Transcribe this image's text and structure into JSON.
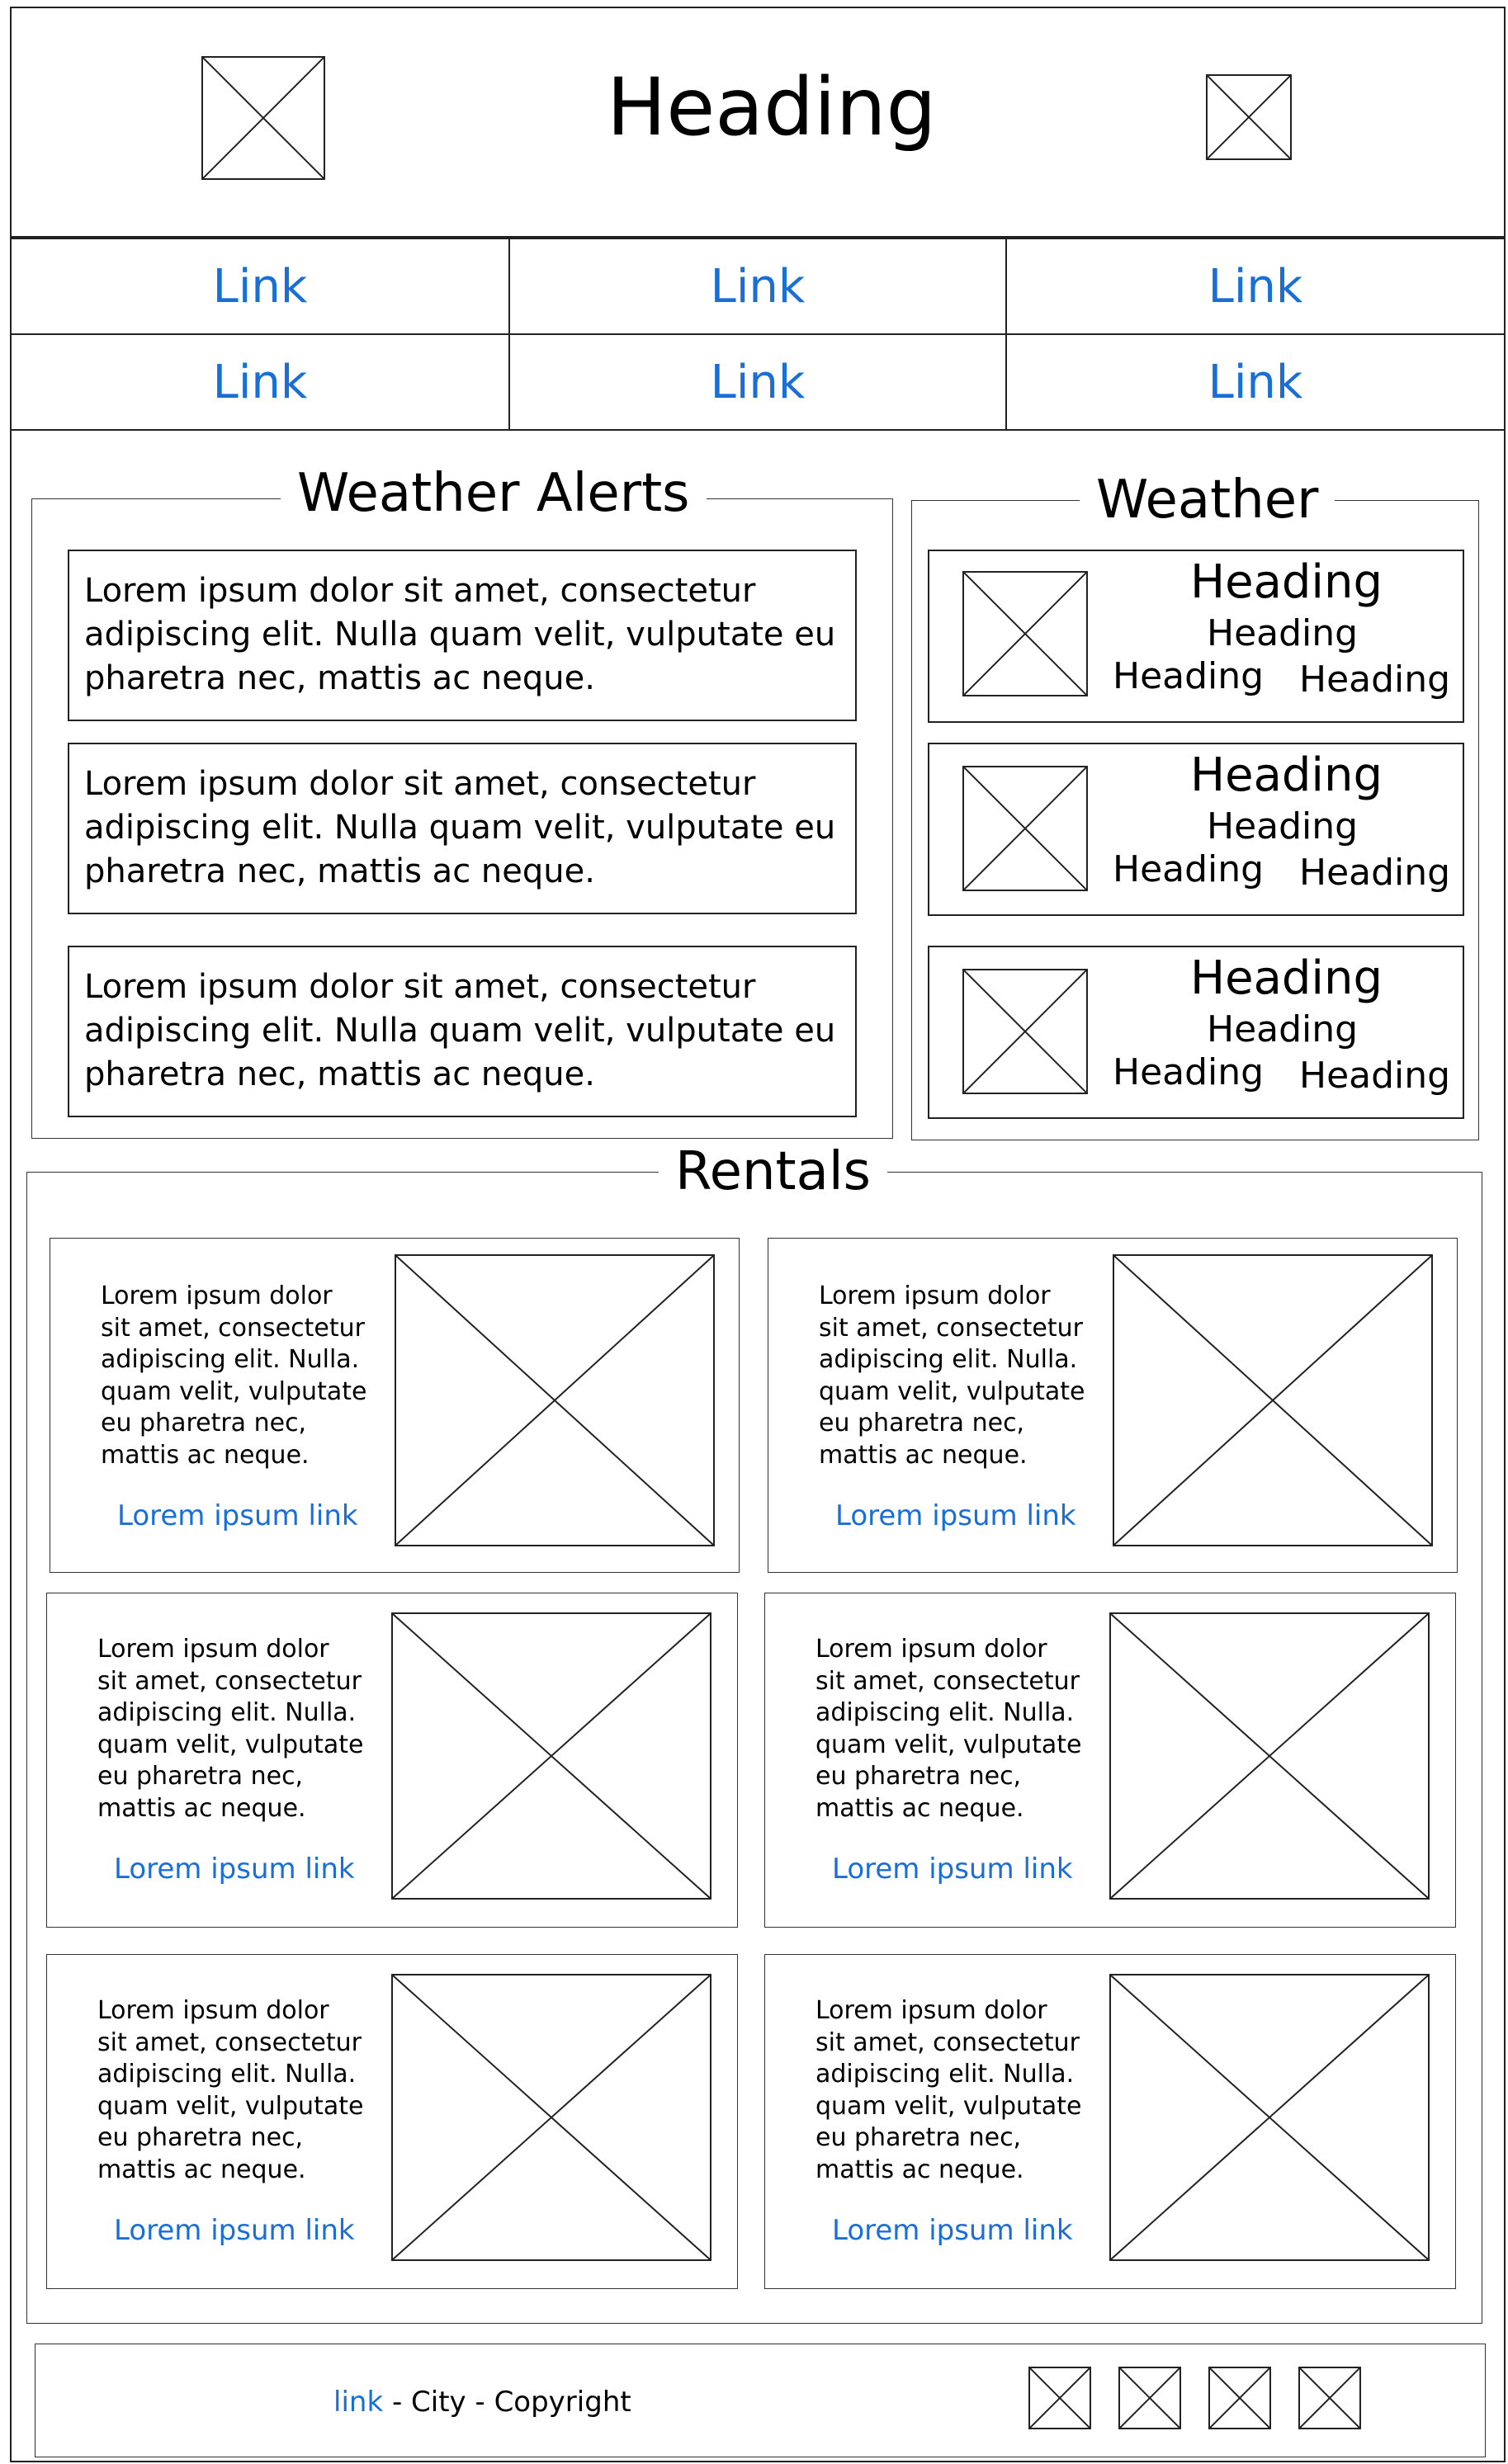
{
  "header": {
    "title": "Heading"
  },
  "nav": {
    "links": [
      "Link",
      "Link",
      "Link",
      "Link",
      "Link",
      "Link"
    ]
  },
  "weather_alerts": {
    "title": "Weather Alerts",
    "items": [
      "Lorem ipsum dolor sit amet, consectetur adipiscing elit. Nulla quam velit, vulputate eu pharetra nec, mattis ac neque.",
      "Lorem ipsum dolor sit amet, consectetur adipiscing elit. Nulla quam velit, vulputate eu pharetra nec, mattis ac neque.",
      "Lorem ipsum dolor sit amet, consectetur adipiscing elit. Nulla quam velit, vulputate eu pharetra nec, mattis ac neque."
    ]
  },
  "weather": {
    "title": "Weather",
    "cards": [
      {
        "h1": "Heading",
        "h2": "Heading",
        "h3": "Heading",
        "h4": "Heading"
      },
      {
        "h1": "Heading",
        "h2": "Heading",
        "h3": "Heading",
        "h4": "Heading"
      },
      {
        "h1": "Heading",
        "h2": "Heading",
        "h3": "Heading",
        "h4": "Heading"
      }
    ]
  },
  "rentals": {
    "title": "Rentals",
    "cards": [
      {
        "text": "Lorem ipsum dolor\nsit amet, consectetur\nadipiscing elit. Nulla.\nquam velit, vulputate\neu pharetra nec,\nmattis ac neque.",
        "link": "Lorem ipsum link"
      },
      {
        "text": "Lorem ipsum dolor\nsit amet, consectetur\nadipiscing elit. Nulla.\nquam velit, vulputate\neu pharetra nec,\nmattis ac neque.",
        "link": "Lorem ipsum link"
      },
      {
        "text": "Lorem ipsum dolor\nsit amet, consectetur\nadipiscing elit. Nulla.\nquam velit, vulputate\neu pharetra nec,\nmattis ac neque.",
        "link": "Lorem ipsum link"
      },
      {
        "text": "Lorem ipsum dolor\nsit amet, consectetur\nadipiscing elit. Nulla.\nquam velit, vulputate\neu pharetra nec,\nmattis ac neque.",
        "link": "Lorem ipsum link"
      },
      {
        "text": "Lorem ipsum dolor\nsit amet, consectetur\nadipiscing elit. Nulla.\nquam velit, vulputate\neu pharetra nec,\nmattis ac neque.",
        "link": "Lorem ipsum link"
      },
      {
        "text": "Lorem ipsum dolor\nsit amet, consectetur\nadipiscing elit. Nulla.\nquam velit, vulputate\neu pharetra nec,\nmattis ac neque.",
        "link": "Lorem ipsum link"
      }
    ]
  },
  "footer": {
    "link": "link",
    "separator1": " - ",
    "city": "City",
    "separator2": " - ",
    "copyright": "Copyright"
  },
  "colors": {
    "link": "#1a6fd6",
    "border": "#222222",
    "background": "#ffffff"
  }
}
